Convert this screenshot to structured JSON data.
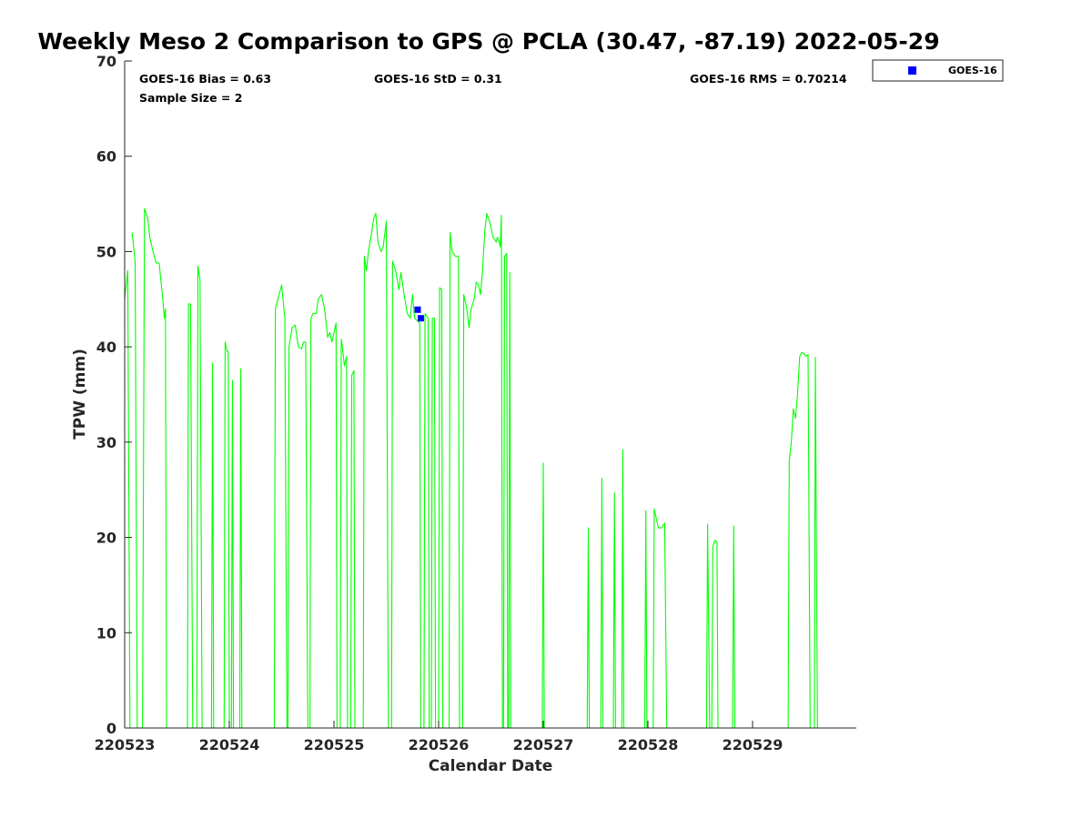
{
  "chart_data": {
    "type": "line",
    "title": "Weekly Meso 2 Comparison to GPS @ PCLA (30.47, -87.19) 2022-05-29",
    "xlabel": "Calendar Date",
    "ylabel": "TPW (mm)",
    "x_tick_labels": [
      "220523",
      "220524",
      "220525",
      "220526",
      "220527",
      "220528",
      "220529"
    ],
    "x_range_days": [
      0,
      7
    ],
    "ylim": [
      0,
      70
    ],
    "y_ticks": [
      0,
      10,
      20,
      30,
      40,
      50,
      60,
      70
    ],
    "grid": false,
    "legend_position": "outside top-right",
    "stats": {
      "bias": "GOES-16 Bias = 0.63",
      "std": "GOES-16 StD = 0.31",
      "rms": "GOES-16 RMS = 0.70214",
      "sample": "Sample Size = 2"
    },
    "legend": [
      {
        "name": "GOES-16",
        "color": "#0000ff",
        "marker": "square"
      }
    ],
    "series": [
      {
        "color": "#00ff00",
        "kind": "line",
        "segments": [
          [
            [
              0.0,
              45.0
            ],
            [
              0.03,
              48.0
            ],
            [
              0.05,
              0
            ]
          ],
          [
            [
              0.07,
              52.0
            ],
            [
              0.1,
              49.0
            ],
            [
              0.12,
              0
            ]
          ],
          [
            [
              0.17,
              0
            ],
            [
              0.19,
              54.5
            ],
            [
              0.22,
              53.5
            ],
            [
              0.24,
              51.5
            ],
            [
              0.27,
              50.0
            ],
            [
              0.3,
              48.8
            ],
            [
              0.33,
              48.8
            ],
            [
              0.36,
              45.5
            ],
            [
              0.38,
              43.0
            ],
            [
              0.39,
              44.0
            ],
            [
              0.4,
              0
            ]
          ],
          [
            [
              0.6,
              0
            ],
            [
              0.61,
              44.5
            ],
            [
              0.63,
              44.5
            ],
            [
              0.65,
              0
            ]
          ],
          [
            [
              0.69,
              0
            ],
            [
              0.7,
              48.5
            ],
            [
              0.72,
              47.0
            ],
            [
              0.74,
              0
            ]
          ],
          [
            [
              0.83,
              0
            ],
            [
              0.84,
              38.3
            ],
            [
              0.85,
              0
            ]
          ],
          [
            [
              0.95,
              0
            ],
            [
              0.96,
              40.5
            ],
            [
              0.98,
              39.5
            ],
            [
              0.99,
              39.5
            ],
            [
              1.0,
              0
            ]
          ],
          [
            [
              1.02,
              0
            ],
            [
              1.03,
              36.5
            ],
            [
              1.04,
              0
            ]
          ],
          [
            [
              1.1,
              0
            ],
            [
              1.11,
              37.7
            ],
            [
              1.12,
              0
            ]
          ],
          [
            [
              1.43,
              0
            ],
            [
              1.44,
              44.0
            ],
            [
              1.5,
              46.5
            ],
            [
              1.53,
              43.0
            ],
            [
              1.55,
              0
            ]
          ],
          [
            [
              1.56,
              0
            ],
            [
              1.57,
              40.0
            ],
            [
              1.6,
              42.0
            ],
            [
              1.63,
              42.3
            ],
            [
              1.66,
              40.0
            ],
            [
              1.69,
              39.8
            ],
            [
              1.71,
              40.5
            ],
            [
              1.73,
              40.5
            ],
            [
              1.75,
              0
            ]
          ],
          [
            [
              1.77,
              0
            ],
            [
              1.78,
              43.0
            ],
            [
              1.8,
              43.5
            ],
            [
              1.83,
              43.5
            ],
            [
              1.85,
              45.0
            ],
            [
              1.88,
              45.5
            ],
            [
              1.91,
              44.0
            ],
            [
              1.94,
              41.0
            ],
            [
              1.96,
              41.5
            ],
            [
              1.98,
              40.5
            ],
            [
              2.0,
              41.5
            ],
            [
              2.02,
              42.5
            ],
            [
              2.03,
              0
            ]
          ],
          [
            [
              2.06,
              0
            ],
            [
              2.07,
              40.8
            ],
            [
              2.08,
              40.0
            ],
            [
              2.1,
              38.0
            ],
            [
              2.12,
              39.0
            ],
            [
              2.13,
              0
            ]
          ],
          [
            [
              2.16,
              0
            ],
            [
              2.17,
              37.0
            ],
            [
              2.19,
              37.5
            ],
            [
              2.2,
              0
            ]
          ],
          [
            [
              2.28,
              0
            ],
            [
              2.29,
              49.5
            ],
            [
              2.31,
              48.0
            ],
            [
              2.33,
              50.0
            ],
            [
              2.36,
              52.0
            ],
            [
              2.38,
              53.5
            ],
            [
              2.4,
              54.0
            ],
            [
              2.42,
              51.0
            ],
            [
              2.45,
              50.0
            ],
            [
              2.47,
              50.5
            ],
            [
              2.5,
              53.2
            ],
            [
              2.52,
              0
            ]
          ],
          [
            [
              2.55,
              0
            ],
            [
              2.56,
              49.0
            ],
            [
              2.59,
              48.0
            ],
            [
              2.62,
              46.0
            ],
            [
              2.64,
              47.8
            ],
            [
              2.67,
              45.5
            ],
            [
              2.7,
              43.5
            ],
            [
              2.73,
              43.0
            ],
            [
              2.75,
              45.5
            ],
            [
              2.77,
              43.0
            ],
            [
              2.8,
              42.7
            ],
            [
              2.82,
              42.5
            ],
            [
              2.83,
              0
            ]
          ],
          [
            [
              2.86,
              0
            ],
            [
              2.87,
              43.5
            ],
            [
              2.9,
              43.0
            ],
            [
              2.91,
              0
            ]
          ],
          [
            [
              2.93,
              0
            ],
            [
              2.94,
              43.0
            ],
            [
              2.96,
              43.0
            ],
            [
              2.97,
              0
            ]
          ],
          [
            [
              3.0,
              0
            ],
            [
              3.01,
              46.2
            ],
            [
              3.03,
              46.0
            ],
            [
              3.04,
              0
            ]
          ],
          [
            [
              3.1,
              0
            ],
            [
              3.11,
              52.0
            ],
            [
              3.13,
              50.0
            ],
            [
              3.16,
              49.5
            ],
            [
              3.19,
              49.5
            ],
            [
              3.2,
              0
            ]
          ],
          [
            [
              3.23,
              0
            ],
            [
              3.24,
              45.5
            ],
            [
              3.27,
              44.0
            ],
            [
              3.29,
              42.0
            ],
            [
              3.31,
              44.0
            ],
            [
              3.34,
              45.0
            ],
            [
              3.36,
              46.8
            ],
            [
              3.38,
              46.5
            ],
            [
              3.4,
              45.5
            ],
            [
              3.42,
              48.0
            ],
            [
              3.44,
              52.0
            ],
            [
              3.46,
              54.0
            ],
            [
              3.49,
              53.0
            ],
            [
              3.52,
              51.5
            ],
            [
              3.55,
              51.0
            ],
            [
              3.56,
              51.5
            ],
            [
              3.58,
              51.0
            ],
            [
              3.59,
              50.5
            ],
            [
              3.6,
              53.8
            ],
            [
              3.61,
              0
            ]
          ],
          [
            [
              3.62,
              0
            ],
            [
              3.63,
              49.5
            ],
            [
              3.65,
              49.8
            ],
            [
              3.66,
              0
            ]
          ],
          [
            [
              3.67,
              0
            ],
            [
              3.68,
              47.8
            ],
            [
              3.69,
              0
            ]
          ],
          [
            [
              3.99,
              0
            ],
            [
              4.0,
              27.8
            ],
            [
              4.01,
              0
            ]
          ],
          [
            [
              4.42,
              0
            ],
            [
              4.43,
              21.0
            ],
            [
              4.44,
              0
            ]
          ],
          [
            [
              4.55,
              0
            ],
            [
              4.56,
              26.2
            ],
            [
              4.57,
              0
            ]
          ],
          [
            [
              4.67,
              0
            ],
            [
              4.68,
              24.7
            ],
            [
              4.69,
              0
            ]
          ],
          [
            [
              4.75,
              0
            ],
            [
              4.76,
              29.2
            ],
            [
              4.77,
              0
            ]
          ],
          [
            [
              4.97,
              0
            ],
            [
              4.98,
              22.8
            ],
            [
              4.99,
              0
            ]
          ],
          [
            [
              5.05,
              0
            ],
            [
              5.06,
              23.0
            ],
            [
              5.08,
              22.0
            ],
            [
              5.1,
              21.0
            ],
            [
              5.13,
              21.0
            ],
            [
              5.16,
              21.5
            ],
            [
              5.18,
              0
            ]
          ],
          [
            [
              5.56,
              0
            ],
            [
              5.57,
              21.4
            ],
            [
              5.59,
              0
            ]
          ],
          [
            [
              5.61,
              0
            ],
            [
              5.62,
              19.0
            ],
            [
              5.64,
              19.7
            ],
            [
              5.66,
              19.5
            ],
            [
              5.67,
              0
            ]
          ],
          [
            [
              5.81,
              0
            ],
            [
              5.82,
              21.2
            ],
            [
              5.83,
              0
            ]
          ],
          [
            [
              6.34,
              0
            ],
            [
              6.35,
              28.0
            ],
            [
              6.37,
              30.0
            ],
            [
              6.39,
              33.5
            ],
            [
              6.41,
              32.5
            ],
            [
              6.43,
              35.0
            ],
            [
              6.45,
              39.0
            ],
            [
              6.47,
              39.4
            ],
            [
              6.49,
              39.3
            ],
            [
              6.51,
              39.0
            ],
            [
              6.53,
              39.2
            ],
            [
              6.55,
              0
            ]
          ],
          [
            [
              6.59,
              0
            ],
            [
              6.6,
              38.9
            ],
            [
              6.62,
              0
            ]
          ]
        ]
      },
      {
        "name": "GOES-16",
        "color": "#0000ff",
        "kind": "marker",
        "points": [
          [
            2.8,
            43.9
          ],
          [
            2.83,
            43.0
          ]
        ]
      }
    ]
  }
}
